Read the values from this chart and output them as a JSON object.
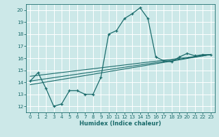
{
  "xlabel": "Humidex (Indice chaleur)",
  "xlim": [
    -0.5,
    23.5
  ],
  "ylim": [
    11.5,
    20.5
  ],
  "xticks": [
    0,
    1,
    2,
    3,
    4,
    5,
    6,
    7,
    8,
    9,
    10,
    11,
    12,
    13,
    14,
    15,
    16,
    17,
    18,
    19,
    20,
    21,
    22,
    23
  ],
  "yticks": [
    12,
    13,
    14,
    15,
    16,
    17,
    18,
    19,
    20
  ],
  "bg_color": "#cce8e8",
  "grid_color": "#ffffff",
  "line_color": "#1a6b6b",
  "main_line": {
    "x": [
      0,
      1,
      2,
      3,
      4,
      5,
      6,
      7,
      8,
      9,
      10,
      11,
      12,
      13,
      14,
      15,
      16,
      17,
      18,
      19,
      20,
      21,
      22,
      23
    ],
    "y": [
      14.1,
      14.8,
      13.5,
      12.0,
      12.2,
      13.3,
      13.3,
      13.0,
      13.0,
      14.4,
      18.0,
      18.3,
      19.3,
      19.7,
      20.2,
      19.3,
      16.1,
      15.8,
      15.7,
      16.1,
      16.4,
      16.2,
      16.3,
      16.3
    ]
  },
  "reg_lines": [
    {
      "x": [
        0,
        23
      ],
      "y": [
        14.1,
        16.3
      ]
    },
    {
      "x": [
        0,
        23
      ],
      "y": [
        13.8,
        16.3
      ]
    },
    {
      "x": [
        0,
        23
      ],
      "y": [
        14.5,
        16.3
      ]
    }
  ]
}
